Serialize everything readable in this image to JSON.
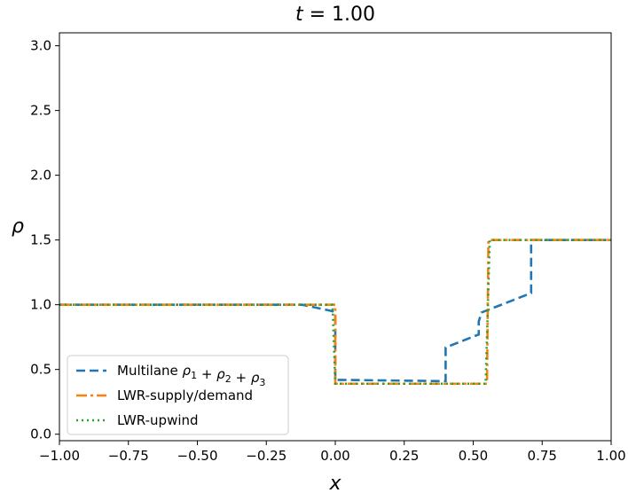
{
  "chart_data": {
    "type": "line",
    "title": "t = 1.00",
    "title_parts": {
      "var": "t",
      "rest": " = 1.00"
    },
    "xlabel": "x",
    "ylabel": "ρ",
    "xlim": [
      -1.0,
      1.0
    ],
    "ylim": [
      -0.05,
      3.1
    ],
    "xticks": [
      -1.0,
      -0.75,
      -0.5,
      -0.25,
      0.0,
      0.25,
      0.5,
      0.75,
      1.0
    ],
    "xtick_labels": [
      "−1.00",
      "−0.75",
      "−0.50",
      "−0.25",
      "0.00",
      "0.25",
      "0.50",
      "0.75",
      "1.00"
    ],
    "yticks": [
      0.0,
      0.5,
      1.0,
      1.5,
      2.0,
      2.5,
      3.0
    ],
    "ytick_labels": [
      "0.0",
      "0.5",
      "1.0",
      "1.5",
      "2.0",
      "2.5",
      "3.0"
    ],
    "grid": false,
    "legend_position": "lower-left",
    "series": [
      {
        "name": "Multilane ρ1 + ρ2 + ρ3",
        "legend": {
          "base": "Multilane ",
          "terms": [
            "ρ",
            "1",
            "ρ",
            "2",
            "ρ",
            "3"
          ]
        },
        "color": "#1f77b4",
        "style": "dashed",
        "x": [
          -1.0,
          -0.12,
          -0.01,
          0.0,
          0.0,
          0.39,
          0.4,
          0.4,
          0.52,
          0.52,
          0.53,
          0.71,
          0.71,
          1.0
        ],
        "y": [
          1.0,
          1.0,
          0.95,
          0.93,
          0.42,
          0.41,
          0.41,
          0.67,
          0.77,
          0.87,
          0.94,
          1.09,
          1.5,
          1.5
        ]
      },
      {
        "name": "LWR-supply/demand",
        "color": "#ff7f0e",
        "style": "dashdot",
        "x": [
          -1.0,
          0.0,
          0.0,
          0.55,
          0.555,
          1.0
        ],
        "y": [
          1.0,
          1.0,
          0.39,
          0.39,
          1.5,
          1.5
        ]
      },
      {
        "name": "LWR-upwind",
        "color": "#2ca02c",
        "style": "dotted",
        "x": [
          -1.0,
          -0.01,
          0.0,
          0.545,
          0.56,
          1.0
        ],
        "y": [
          1.0,
          1.0,
          0.39,
          0.39,
          1.5,
          1.5
        ]
      }
    ]
  }
}
